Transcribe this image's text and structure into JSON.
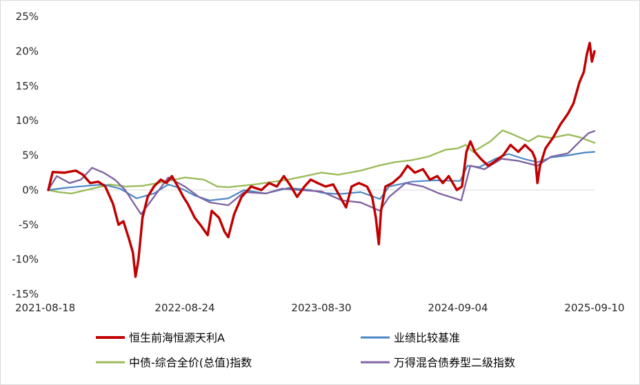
{
  "chart_data": {
    "type": "line",
    "title": "",
    "xlabel": "",
    "ylabel": "",
    "ylim": [
      -15,
      25
    ],
    "y_ticks": [
      "25%",
      "20%",
      "15%",
      "10%",
      "5%",
      "0%",
      "-5%",
      "-10%",
      "-15%"
    ],
    "y_tick_values": [
      25,
      20,
      15,
      10,
      5,
      0,
      -5,
      -10,
      -15
    ],
    "x_range": [
      "2021-08-18",
      "2025-09-10"
    ],
    "x_ticks": [
      "2021-08-18",
      "2022-08-24",
      "2023-08-30",
      "2024-09-04",
      "2025-09-10"
    ],
    "grid": false,
    "legend_position": "bottom",
    "series": [
      {
        "name": "恒生前海恒源天利A",
        "color": "#C00000",
        "points": [
          [
            "2021-08-18",
            0
          ],
          [
            "2021-08-30",
            2.6
          ],
          [
            "2021-10-01",
            2.5
          ],
          [
            "2021-11-01",
            2.8
          ],
          [
            "2021-11-20",
            2.2
          ],
          [
            "2021-12-10",
            1.0
          ],
          [
            "2022-01-01",
            1.2
          ],
          [
            "2022-01-20",
            0.5
          ],
          [
            "2022-02-10",
            -2.0
          ],
          [
            "2022-02-25",
            -5.0
          ],
          [
            "2022-03-10",
            -4.5
          ],
          [
            "2022-03-25",
            -7.0
          ],
          [
            "2022-04-05",
            -9.0
          ],
          [
            "2022-04-12",
            -12.5
          ],
          [
            "2022-04-20",
            -10.0
          ],
          [
            "2022-05-01",
            -4.0
          ],
          [
            "2022-05-15",
            -1.0
          ],
          [
            "2022-06-01",
            0.5
          ],
          [
            "2022-06-20",
            1.5
          ],
          [
            "2022-07-05",
            1.0
          ],
          [
            "2022-07-20",
            2.0
          ],
          [
            "2022-08-05",
            0.5
          ],
          [
            "2022-08-20",
            -1.0
          ],
          [
            "2022-09-01",
            -2.0
          ],
          [
            "2022-09-20",
            -4.0
          ],
          [
            "2022-10-05",
            -5.0
          ],
          [
            "2022-10-25",
            -6.5
          ],
          [
            "2022-11-05",
            -3.0
          ],
          [
            "2022-11-25",
            -4.0
          ],
          [
            "2022-12-10",
            -6.0
          ],
          [
            "2022-12-20",
            -6.8
          ],
          [
            "2023-01-05",
            -3.5
          ],
          [
            "2023-01-25",
            -1.0
          ],
          [
            "2023-02-20",
            0.5
          ],
          [
            "2023-03-20",
            0.0
          ],
          [
            "2023-04-10",
            1.0
          ],
          [
            "2023-05-01",
            0.5
          ],
          [
            "2023-05-20",
            2.0
          ],
          [
            "2023-06-05",
            0.8
          ],
          [
            "2023-06-25",
            -1.0
          ],
          [
            "2023-07-15",
            0.5
          ],
          [
            "2023-08-01",
            1.5
          ],
          [
            "2023-08-20",
            1.0
          ],
          [
            "2023-09-10",
            0.5
          ],
          [
            "2023-10-01",
            0.8
          ],
          [
            "2023-10-20",
            -1.0
          ],
          [
            "2023-11-05",
            -2.5
          ],
          [
            "2023-11-20",
            0.5
          ],
          [
            "2023-12-10",
            1.0
          ],
          [
            "2024-01-01",
            0.5
          ],
          [
            "2024-01-15",
            -1.0
          ],
          [
            "2024-01-25",
            -4.0
          ],
          [
            "2024-02-02",
            -7.8
          ],
          [
            "2024-02-08",
            -3.0
          ],
          [
            "2024-02-20",
            0.5
          ],
          [
            "2024-03-10",
            1.0
          ],
          [
            "2024-04-01",
            2.0
          ],
          [
            "2024-04-20",
            3.5
          ],
          [
            "2024-05-10",
            2.5
          ],
          [
            "2024-06-01",
            3.0
          ],
          [
            "2024-06-20",
            1.5
          ],
          [
            "2024-07-10",
            2.0
          ],
          [
            "2024-07-25",
            1.0
          ],
          [
            "2024-08-10",
            2.0
          ],
          [
            "2024-09-01",
            0.0
          ],
          [
            "2024-09-15",
            0.5
          ],
          [
            "2024-09-27",
            5.5
          ],
          [
            "2024-10-08",
            7.0
          ],
          [
            "2024-10-20",
            5.5
          ],
          [
            "2024-11-05",
            4.5
          ],
          [
            "2024-11-25",
            3.5
          ],
          [
            "2024-12-10",
            4.0
          ],
          [
            "2025-01-05",
            5.0
          ],
          [
            "2025-01-25",
            6.5
          ],
          [
            "2025-02-15",
            5.5
          ],
          [
            "2025-03-05",
            6.5
          ],
          [
            "2025-03-25",
            5.5
          ],
          [
            "2025-04-02",
            4.5
          ],
          [
            "2025-04-08",
            1.0
          ],
          [
            "2025-04-15",
            3.5
          ],
          [
            "2025-04-30",
            6.0
          ],
          [
            "2025-05-20",
            7.5
          ],
          [
            "2025-06-10",
            9.5
          ],
          [
            "2025-06-30",
            11.0
          ],
          [
            "2025-07-15",
            12.5
          ],
          [
            "2025-07-31",
            15.5
          ],
          [
            "2025-08-12",
            17.0
          ],
          [
            "2025-08-20",
            19.5
          ],
          [
            "2025-08-28",
            21.2
          ],
          [
            "2025-09-03",
            18.5
          ],
          [
            "2025-09-10",
            20.0
          ]
        ]
      },
      {
        "name": "业绩比较基准",
        "color": "#4A86C4",
        "points": [
          [
            "2021-08-18",
            0
          ],
          [
            "2021-10-01",
            0.3
          ],
          [
            "2021-12-01",
            0.6
          ],
          [
            "2022-01-15",
            0.8
          ],
          [
            "2022-03-01",
            0.2
          ],
          [
            "2022-04-15",
            -1.2
          ],
          [
            "2022-06-01",
            -0.5
          ],
          [
            "2022-07-10",
            0.8
          ],
          [
            "2022-08-15",
            0.2
          ],
          [
            "2022-09-20",
            -0.8
          ],
          [
            "2022-10-31",
            -1.5
          ],
          [
            "2022-12-20",
            -1.2
          ],
          [
            "2023-02-01",
            0.0
          ],
          [
            "2023-04-01",
            -0.5
          ],
          [
            "2023-06-01",
            0.3
          ],
          [
            "2023-08-01",
            0.0
          ],
          [
            "2023-09-01",
            -0.4
          ],
          [
            "2023-10-15",
            -0.6
          ],
          [
            "2023-12-15",
            -0.3
          ],
          [
            "2024-02-05",
            -1.3
          ],
          [
            "2024-03-01",
            0.5
          ],
          [
            "2024-05-01",
            1.2
          ],
          [
            "2024-07-01",
            1.4
          ],
          [
            "2024-09-10",
            1.3
          ],
          [
            "2024-09-30",
            3.5
          ],
          [
            "2024-11-01",
            3.3
          ],
          [
            "2024-12-15",
            4.5
          ],
          [
            "2025-01-20",
            5.2
          ],
          [
            "2025-03-01",
            4.5
          ],
          [
            "2025-04-08",
            4.0
          ],
          [
            "2025-05-15",
            4.7
          ],
          [
            "2025-07-01",
            5.0
          ],
          [
            "2025-08-15",
            5.4
          ],
          [
            "2025-09-10",
            5.5
          ]
        ]
      },
      {
        "name": "中债-综合全价(总值)指数",
        "color": "#9BBB59",
        "points": [
          [
            "2021-08-18",
            0
          ],
          [
            "2021-09-15",
            -0.3
          ],
          [
            "2021-10-20",
            -0.5
          ],
          [
            "2021-12-15",
            0.2
          ],
          [
            "2022-02-01",
            0.8
          ],
          [
            "2022-03-15",
            0.5
          ],
          [
            "2022-05-01",
            0.6
          ],
          [
            "2022-07-01",
            1.2
          ],
          [
            "2022-08-24",
            1.8
          ],
          [
            "2022-10-15",
            1.5
          ],
          [
            "2022-11-20",
            0.5
          ],
          [
            "2022-12-20",
            0.4
          ],
          [
            "2023-03-01",
            0.8
          ],
          [
            "2023-06-01",
            1.5
          ],
          [
            "2023-08-30",
            2.5
          ],
          [
            "2023-10-15",
            2.2
          ],
          [
            "2023-12-15",
            2.8
          ],
          [
            "2024-02-01",
            3.5
          ],
          [
            "2024-03-15",
            4.0
          ],
          [
            "2024-05-01",
            4.3
          ],
          [
            "2024-06-15",
            4.8
          ],
          [
            "2024-08-01",
            5.8
          ],
          [
            "2024-09-04",
            6.0
          ],
          [
            "2024-09-25",
            6.5
          ],
          [
            "2024-10-15",
            5.5
          ],
          [
            "2024-12-01",
            7.0
          ],
          [
            "2025-01-03",
            8.6
          ],
          [
            "2025-02-01",
            8.0
          ],
          [
            "2025-03-15",
            7.0
          ],
          [
            "2025-04-10",
            7.8
          ],
          [
            "2025-05-15",
            7.5
          ],
          [
            "2025-07-01",
            8.0
          ],
          [
            "2025-08-01",
            7.6
          ],
          [
            "2025-09-10",
            6.8
          ]
        ]
      },
      {
        "name": "万得混合债券型二级指数",
        "color": "#8064A2",
        "points": [
          [
            "2021-08-18",
            0
          ],
          [
            "2021-09-10",
            2.0
          ],
          [
            "2021-10-15",
            1.0
          ],
          [
            "2021-11-15",
            1.5
          ],
          [
            "2021-12-15",
            3.2
          ],
          [
            "2022-01-15",
            2.5
          ],
          [
            "2022-02-15",
            1.5
          ],
          [
            "2022-03-15",
            0.0
          ],
          [
            "2022-04-27",
            -3.5
          ],
          [
            "2022-06-01",
            -1.0
          ],
          [
            "2022-07-10",
            1.8
          ],
          [
            "2022-08-24",
            0.5
          ],
          [
            "2022-10-01",
            -1.0
          ],
          [
            "2022-11-01",
            -1.8
          ],
          [
            "2022-12-20",
            -2.2
          ],
          [
            "2023-02-01",
            -0.3
          ],
          [
            "2023-04-01",
            -0.5
          ],
          [
            "2023-05-15",
            0.2
          ],
          [
            "2023-07-01",
            0.0
          ],
          [
            "2023-08-30",
            -0.2
          ],
          [
            "2023-10-25",
            -1.5
          ],
          [
            "2023-12-15",
            -1.8
          ],
          [
            "2024-02-05",
            -3.0
          ],
          [
            "2024-03-01",
            -1.0
          ],
          [
            "2024-04-15",
            1.0
          ],
          [
            "2024-06-01",
            0.5
          ],
          [
            "2024-07-15",
            -0.5
          ],
          [
            "2024-09-13",
            -1.5
          ],
          [
            "2024-10-08",
            3.5
          ],
          [
            "2024-11-15",
            3.0
          ],
          [
            "2025-01-01",
            4.5
          ],
          [
            "2025-02-15",
            4.2
          ],
          [
            "2025-04-08",
            3.5
          ],
          [
            "2025-05-15",
            4.8
          ],
          [
            "2025-06-30",
            5.3
          ],
          [
            "2025-08-01",
            7.0
          ],
          [
            "2025-08-25",
            8.2
          ],
          [
            "2025-09-10",
            8.5
          ]
        ]
      }
    ]
  }
}
